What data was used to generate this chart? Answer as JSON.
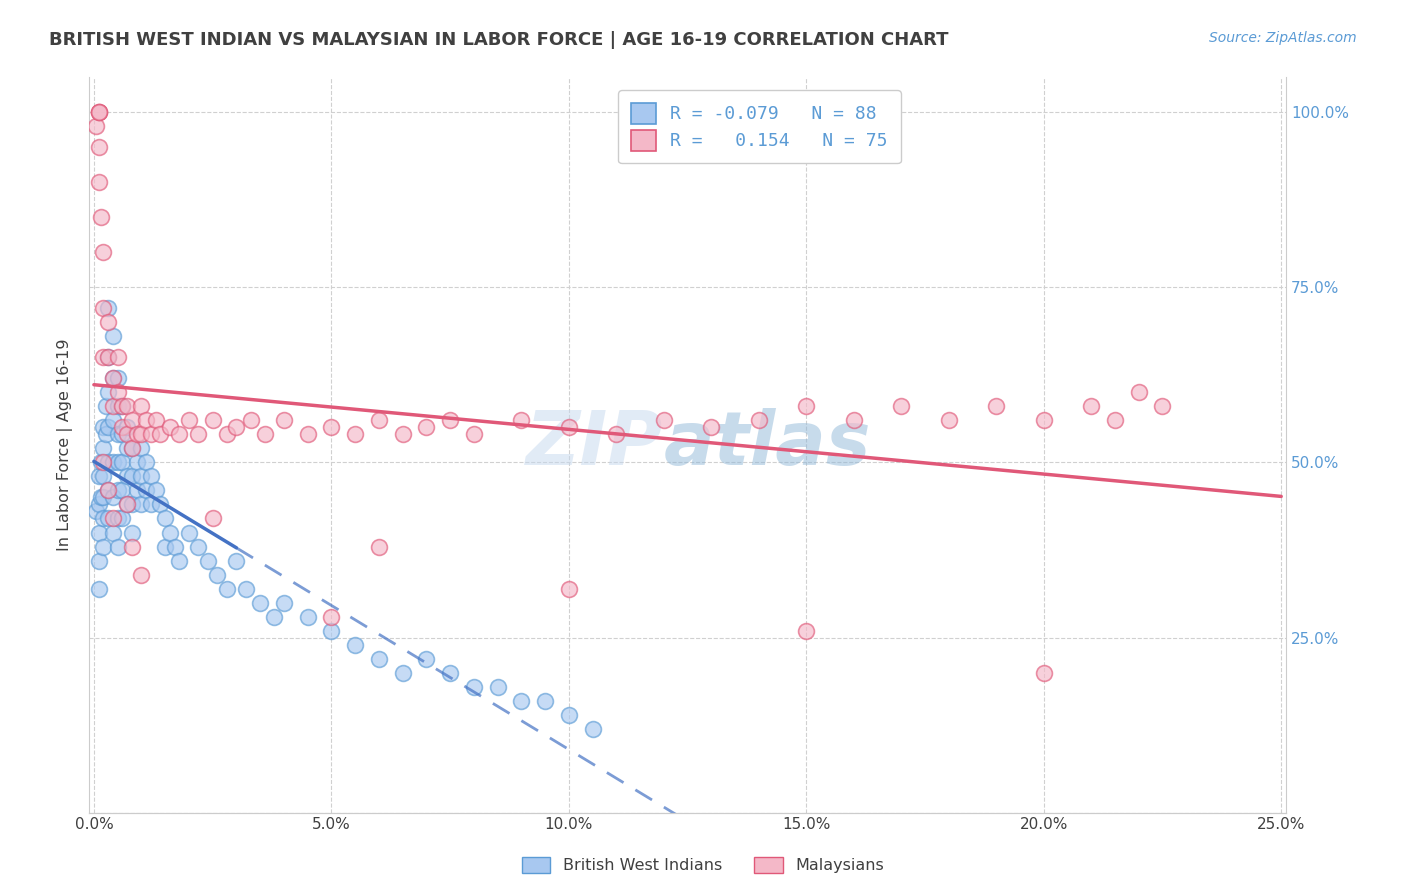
{
  "title": "BRITISH WEST INDIAN VS MALAYSIAN IN LABOR FORCE | AGE 16-19 CORRELATION CHART",
  "source_text": "Source: ZipAtlas.com",
  "ylabel": "In Labor Force | Age 16-19",
  "watermark_zip": "ZIP",
  "watermark_atlas": "atlas",
  "xlim": [
    0.0,
    0.25
  ],
  "ylim": [
    0.0,
    1.0
  ],
  "blue_color": "#A8C8F0",
  "blue_edge_color": "#5B9BD5",
  "pink_color": "#F4B8C8",
  "pink_edge_color": "#E05878",
  "blue_line_color": "#4472C4",
  "pink_line_color": "#E05878",
  "title_color": "#404040",
  "axis_label_color": "#404040",
  "right_tick_color": "#5B9BD5",
  "grid_color": "#D0D0D0",
  "background_color": "#FFFFFF",
  "legend_blue_r": "R = -0.079",
  "legend_blue_n": "N = 88",
  "legend_pink_r": "R =  0.154",
  "legend_pink_n": "N = 75",
  "bwi_x": [
    0.0005,
    0.001,
    0.001,
    0.001,
    0.001,
    0.001,
    0.0015,
    0.0015,
    0.002,
    0.002,
    0.002,
    0.002,
    0.002,
    0.002,
    0.0025,
    0.0025,
    0.003,
    0.003,
    0.003,
    0.003,
    0.003,
    0.003,
    0.003,
    0.004,
    0.004,
    0.004,
    0.004,
    0.004,
    0.004,
    0.005,
    0.005,
    0.005,
    0.005,
    0.005,
    0.005,
    0.005,
    0.006,
    0.006,
    0.006,
    0.006,
    0.006,
    0.007,
    0.007,
    0.007,
    0.007,
    0.008,
    0.008,
    0.008,
    0.008,
    0.009,
    0.009,
    0.01,
    0.01,
    0.01,
    0.011,
    0.011,
    0.012,
    0.012,
    0.013,
    0.014,
    0.015,
    0.015,
    0.016,
    0.017,
    0.018,
    0.02,
    0.022,
    0.024,
    0.026,
    0.028,
    0.03,
    0.032,
    0.035,
    0.038,
    0.04,
    0.045,
    0.05,
    0.055,
    0.06,
    0.065,
    0.07,
    0.075,
    0.08,
    0.085,
    0.09,
    0.095,
    0.1,
    0.105
  ],
  "bwi_y": [
    0.43,
    0.48,
    0.44,
    0.4,
    0.36,
    0.32,
    0.5,
    0.45,
    0.55,
    0.52,
    0.48,
    0.45,
    0.42,
    0.38,
    0.58,
    0.54,
    0.72,
    0.65,
    0.6,
    0.55,
    0.5,
    0.46,
    0.42,
    0.68,
    0.62,
    0.56,
    0.5,
    0.45,
    0.4,
    0.62,
    0.58,
    0.54,
    0.5,
    0.46,
    0.42,
    0.38,
    0.58,
    0.54,
    0.5,
    0.46,
    0.42,
    0.55,
    0.52,
    0.48,
    0.44,
    0.52,
    0.48,
    0.44,
    0.4,
    0.5,
    0.46,
    0.52,
    0.48,
    0.44,
    0.5,
    0.46,
    0.48,
    0.44,
    0.46,
    0.44,
    0.42,
    0.38,
    0.4,
    0.38,
    0.36,
    0.4,
    0.38,
    0.36,
    0.34,
    0.32,
    0.36,
    0.32,
    0.3,
    0.28,
    0.3,
    0.28,
    0.26,
    0.24,
    0.22,
    0.2,
    0.22,
    0.2,
    0.18,
    0.18,
    0.16,
    0.16,
    0.14,
    0.12
  ],
  "mal_x": [
    0.0005,
    0.001,
    0.001,
    0.0015,
    0.002,
    0.002,
    0.002,
    0.003,
    0.003,
    0.004,
    0.004,
    0.005,
    0.005,
    0.006,
    0.006,
    0.007,
    0.007,
    0.008,
    0.008,
    0.009,
    0.01,
    0.01,
    0.011,
    0.012,
    0.013,
    0.014,
    0.016,
    0.018,
    0.02,
    0.022,
    0.025,
    0.028,
    0.03,
    0.033,
    0.036,
    0.04,
    0.045,
    0.05,
    0.055,
    0.06,
    0.065,
    0.07,
    0.075,
    0.08,
    0.09,
    0.1,
    0.11,
    0.12,
    0.13,
    0.14,
    0.15,
    0.16,
    0.17,
    0.18,
    0.19,
    0.2,
    0.21,
    0.215,
    0.22,
    0.225,
    0.025,
    0.06,
    0.1,
    0.002,
    0.003,
    0.004,
    0.05,
    0.15,
    0.2,
    0.001,
    0.001,
    0.001,
    0.007,
    0.008,
    0.01
  ],
  "mal_y": [
    0.98,
    0.95,
    0.9,
    0.85,
    0.8,
    0.72,
    0.65,
    0.7,
    0.65,
    0.62,
    0.58,
    0.65,
    0.6,
    0.58,
    0.55,
    0.58,
    0.54,
    0.56,
    0.52,
    0.54,
    0.58,
    0.54,
    0.56,
    0.54,
    0.56,
    0.54,
    0.55,
    0.54,
    0.56,
    0.54,
    0.56,
    0.54,
    0.55,
    0.56,
    0.54,
    0.56,
    0.54,
    0.55,
    0.54,
    0.56,
    0.54,
    0.55,
    0.56,
    0.54,
    0.56,
    0.55,
    0.54,
    0.56,
    0.55,
    0.56,
    0.58,
    0.56,
    0.58,
    0.56,
    0.58,
    0.56,
    0.58,
    0.56,
    0.6,
    0.58,
    0.42,
    0.38,
    0.32,
    0.5,
    0.46,
    0.42,
    0.28,
    0.26,
    0.2,
    1.0,
    1.0,
    1.0,
    0.44,
    0.38,
    0.34
  ]
}
